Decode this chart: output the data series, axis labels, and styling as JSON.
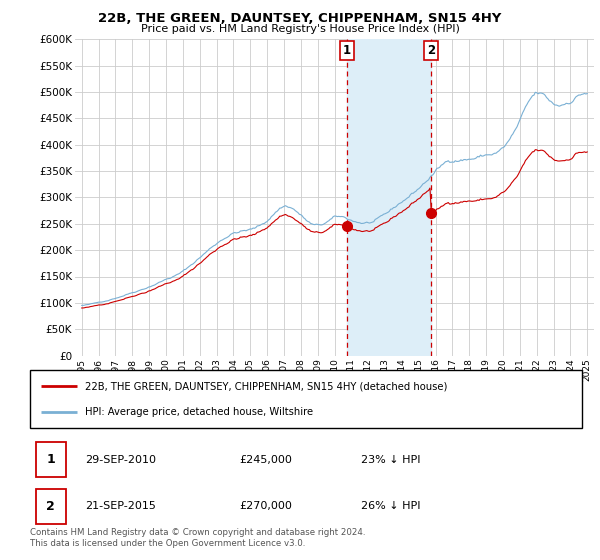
{
  "title": "22B, THE GREEN, DAUNTSEY, CHIPPENHAM, SN15 4HY",
  "subtitle": "Price paid vs. HM Land Registry's House Price Index (HPI)",
  "legend_line1": "22B, THE GREEN, DAUNTSEY, CHIPPENHAM, SN15 4HY (detached house)",
  "legend_line2": "HPI: Average price, detached house, Wiltshire",
  "footnote": "Contains HM Land Registry data © Crown copyright and database right 2024.\nThis data is licensed under the Open Government Licence v3.0.",
  "sale1_date": "29-SEP-2010",
  "sale1_price": "£245,000",
  "sale1_pct": "23% ↓ HPI",
  "sale2_date": "21-SEP-2015",
  "sale2_price": "£270,000",
  "sale2_pct": "26% ↓ HPI",
  "sale1_year": 2010.75,
  "sale2_year": 2015.72,
  "sale1_value": 245000,
  "sale2_value": 270000,
  "red_color": "#cc0000",
  "blue_color": "#7ab0d4",
  "blue_fill_color": "#ddeef8",
  "vline_color": "#cc0000",
  "background_color": "#ffffff",
  "ylim": [
    0,
    600000
  ],
  "yticks": [
    0,
    50000,
    100000,
    150000,
    200000,
    250000,
    300000,
    350000,
    400000,
    450000,
    500000,
    550000,
    600000
  ]
}
